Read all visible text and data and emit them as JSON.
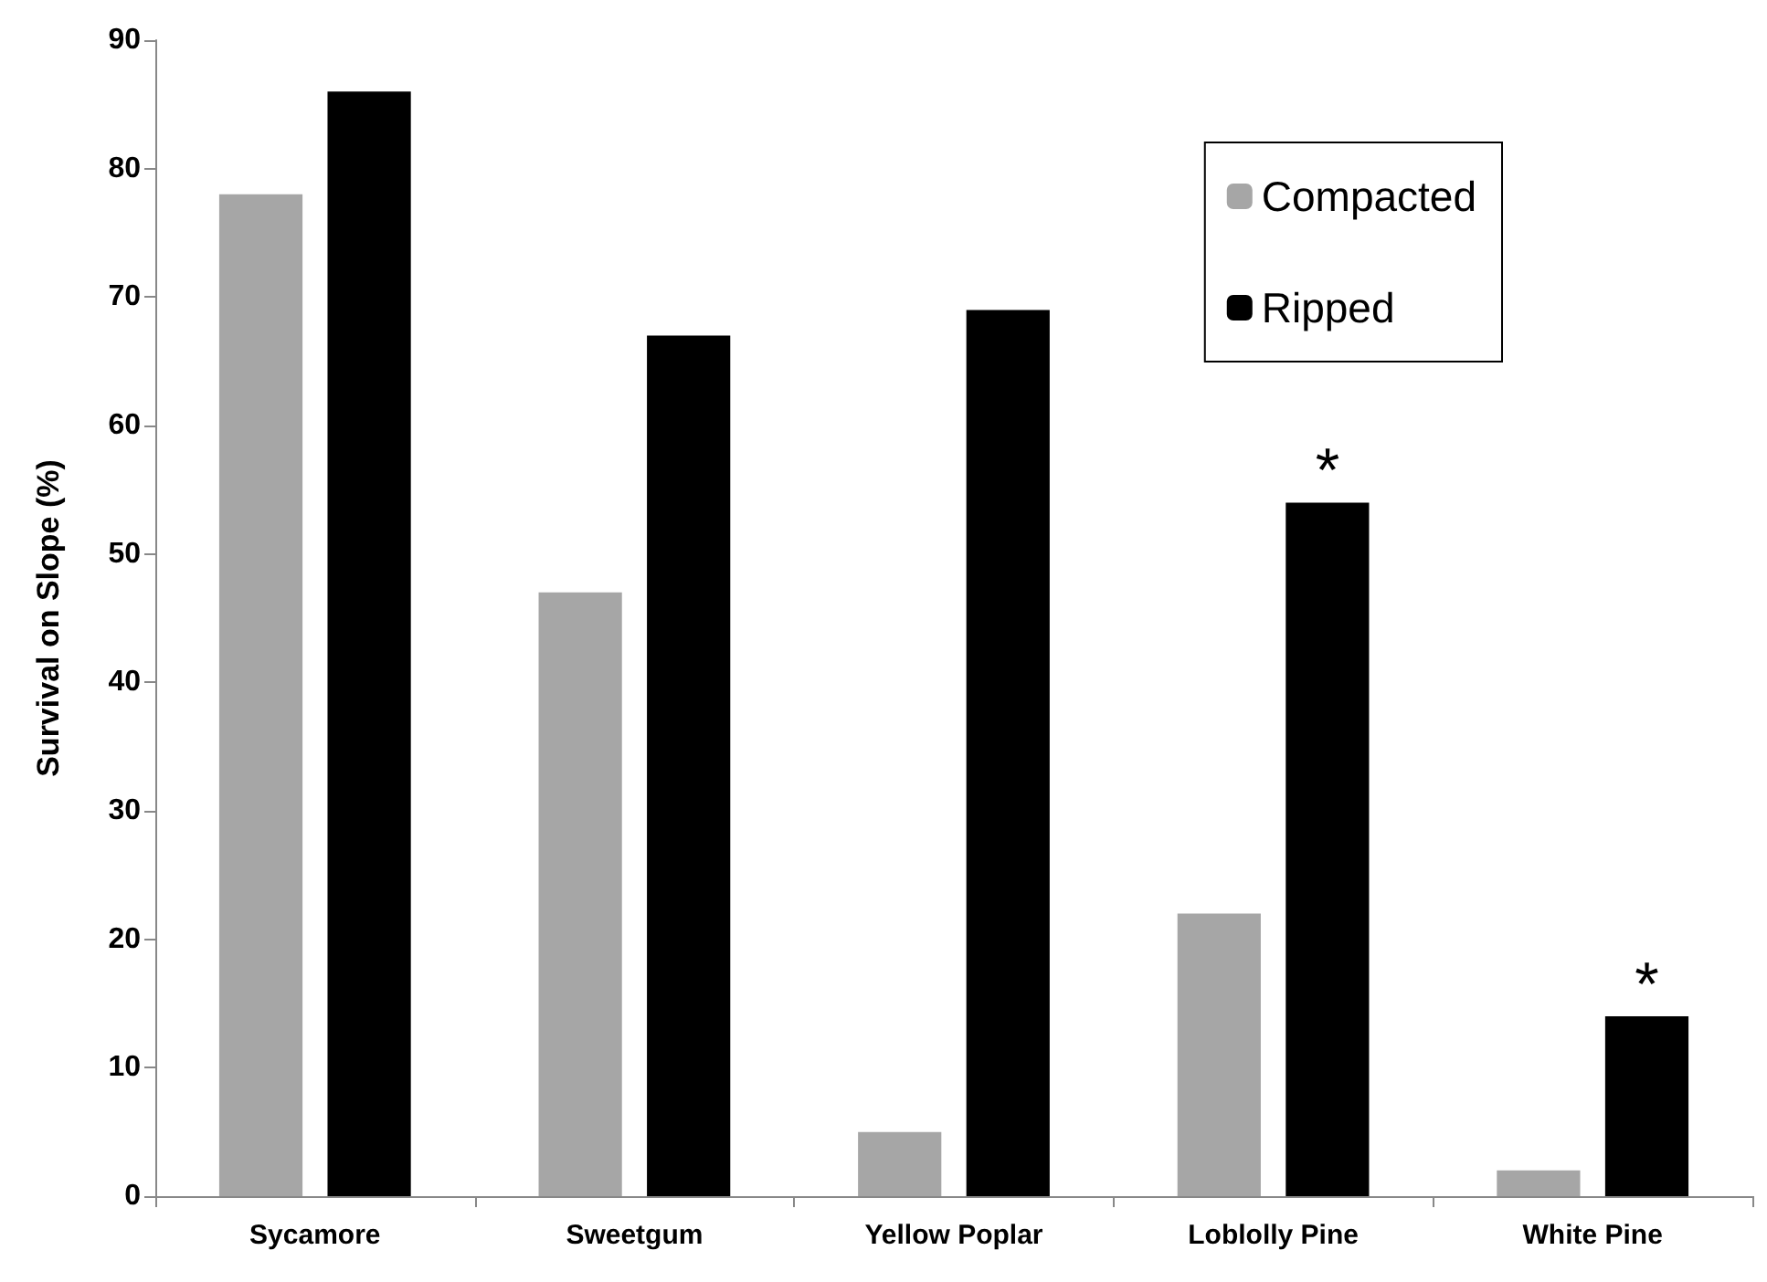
{
  "chart_data": {
    "type": "bar",
    "ylabel": "Survival on Slope (%)",
    "categories": [
      "Sycamore",
      "Sweetgum",
      "Yellow Poplar",
      "Loblolly Pine",
      "White Pine"
    ],
    "series": [
      {
        "name": "Compacted",
        "color": "#a6a6a6",
        "values": [
          78,
          47,
          5,
          22,
          2
        ]
      },
      {
        "name": "Ripped",
        "color": "#000000",
        "values": [
          86,
          67,
          69,
          54,
          14
        ],
        "value_labels": [
          null,
          null,
          null,
          "*",
          "*"
        ]
      }
    ],
    "ylim": [
      0,
      90
    ],
    "yticks": [
      0,
      10,
      20,
      30,
      40,
      50,
      60,
      70,
      80,
      90
    ],
    "grid": false,
    "legend": "top right"
  }
}
